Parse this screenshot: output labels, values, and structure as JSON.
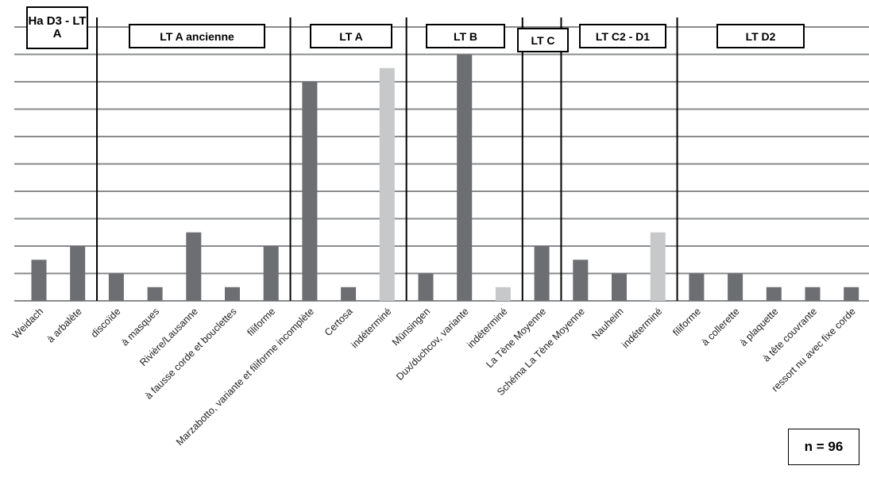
{
  "chart_data": {
    "type": "bar",
    "title": "",
    "xlabel": "",
    "ylabel": "",
    "ylim": [
      0,
      10
    ],
    "grid": true,
    "categories": [
      "Weidach",
      "à arbalète",
      "discoïde",
      "à masques",
      "Rivière/Lausanne",
      "à fausse corde et bouclettes",
      "filiforme",
      "Marzabotto, variante et filiforme incomplète",
      "Certosa",
      "indéterminé",
      "Münsingen",
      "Dux/duchcov, variante",
      "indéterminé",
      "La Tène Moyenne",
      "Schéma La Tène Moyenne",
      "Nauheim",
      "indéterminé",
      "filiforme",
      "à collerette",
      "à plaquette",
      "à tête couvrante",
      "ressort nu avec fixe corde"
    ],
    "values": [
      1.5,
      2,
      1,
      0.5,
      2.5,
      0.5,
      2,
      8,
      0.5,
      8.5,
      1,
      9,
      0.5,
      2,
      1.5,
      1,
      2.5,
      1,
      1,
      0.5,
      0.5,
      0.5
    ],
    "bar_colors": [
      "#6d6e71",
      "#6d6e71",
      "#6d6e71",
      "#6d6e71",
      "#6d6e71",
      "#6d6e71",
      "#6d6e71",
      "#6d6e71",
      "#6d6e71",
      "#c7c8ca",
      "#6d6e71",
      "#6d6e71",
      "#c7c8ca",
      "#6d6e71",
      "#6d6e71",
      "#6d6e71",
      "#c7c8ca",
      "#6d6e71",
      "#6d6e71",
      "#6d6e71",
      "#6d6e71",
      "#6d6e71"
    ],
    "periods": [
      {
        "label": "Ha D3 - LT A",
        "from": 0,
        "to": 1
      },
      {
        "label": "LT A ancienne",
        "from": 2,
        "to": 6
      },
      {
        "label": "LT A",
        "from": 7,
        "to": 9
      },
      {
        "label": "LT B",
        "from": 10,
        "to": 12
      },
      {
        "label": "LT C",
        "from": 13,
        "to": 13
      },
      {
        "label": "LT C2 - D1",
        "from": 14,
        "to": 16
      },
      {
        "label": "LT D2",
        "from": 17,
        "to": 21
      }
    ],
    "annotation": "n = 96",
    "colors": {
      "bar": "#6d6e71",
      "bar_undetermined": "#c7c8ca",
      "grid": "#8a8b8d"
    }
  }
}
